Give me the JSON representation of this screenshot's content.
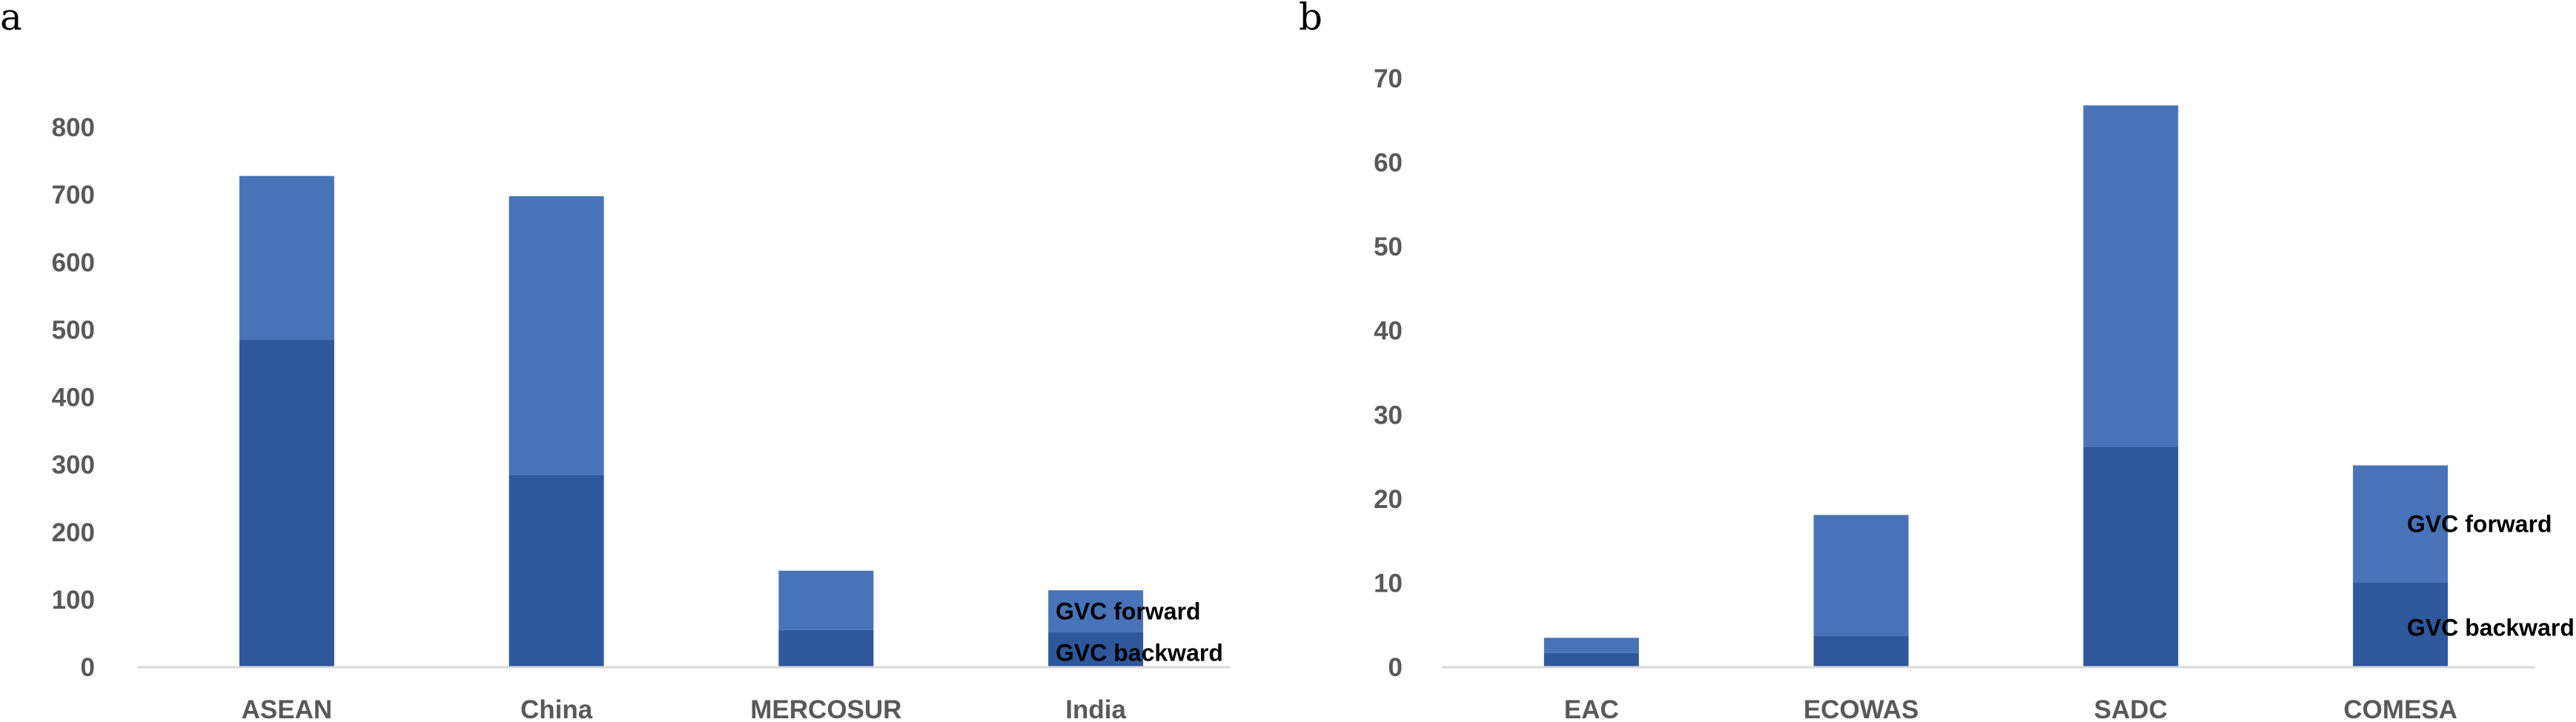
{
  "chart_data": [
    {
      "panel": "a",
      "type": "bar",
      "stacked": true,
      "categories": [
        "ASEAN",
        "China",
        "MERCOSUR",
        "India"
      ],
      "series": [
        {
          "name": "GVC backward",
          "values": [
            485,
            285,
            55,
            52
          ]
        },
        {
          "name": "GVC forward",
          "values": [
            243,
            413,
            88,
            62
          ]
        }
      ],
      "yticks": [
        "0",
        "100",
        "200",
        "300",
        "400",
        "500",
        "600",
        "700",
        "800"
      ],
      "ylim": [
        0,
        800
      ],
      "grid": false,
      "legend_position": "right"
    },
    {
      "panel": "b",
      "type": "bar",
      "stacked": true,
      "categories": [
        "EAC",
        "ECOWAS",
        "SADC",
        "COMESA"
      ],
      "series": [
        {
          "name": "GVC backward",
          "values": [
            1.7,
            3.7,
            26.2,
            10.1
          ]
        },
        {
          "name": "GVC forward",
          "values": [
            1.8,
            14.4,
            40.6,
            13.9
          ]
        }
      ],
      "yticks": [
        "0",
        "10",
        "20",
        "30",
        "40",
        "50",
        "60",
        "70"
      ],
      "ylim": [
        0,
        70
      ],
      "grid": false,
      "legend_position": "right"
    }
  ],
  "colors": {
    "backward": "#2e579c",
    "forward": "#4873b9"
  }
}
